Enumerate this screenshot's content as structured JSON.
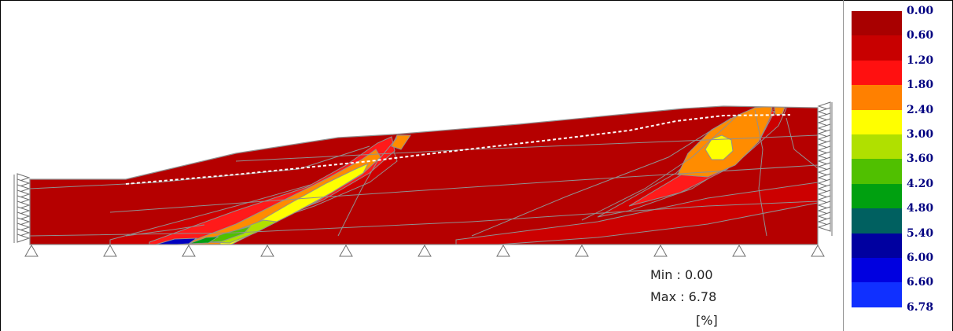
{
  "result_info": {
    "min_text": "Min : 0.00",
    "max_text": "Max : 6.78",
    "unit_text": "[%]"
  },
  "legend": {
    "labels": [
      "0.00",
      "0.60",
      "1.20",
      "1.80",
      "2.40",
      "3.00",
      "3.60",
      "4.20",
      "4.80",
      "5.40",
      "6.00",
      "6.60",
      "6.78"
    ],
    "colors": [
      "#a80000",
      "#c80000",
      "#ff1010",
      "#ff8000",
      "#ffff00",
      "#b0e000",
      "#50c000",
      "#00a010",
      "#006060",
      "#0000a0",
      "#0000e0",
      "#1030ff"
    ]
  },
  "palette": {
    "base": "#b50000",
    "band_dark": "#cc0000",
    "band_red": "#ff1a1a",
    "orange": "#ff8c00",
    "yellow": "#ffff00",
    "lime": "#b0e000",
    "green": "#50c000",
    "darkgreen": "#00a010",
    "blue": "#0000c0",
    "contour": "#909090",
    "phreatic": "#ffffff",
    "support": "#707070"
  }
}
